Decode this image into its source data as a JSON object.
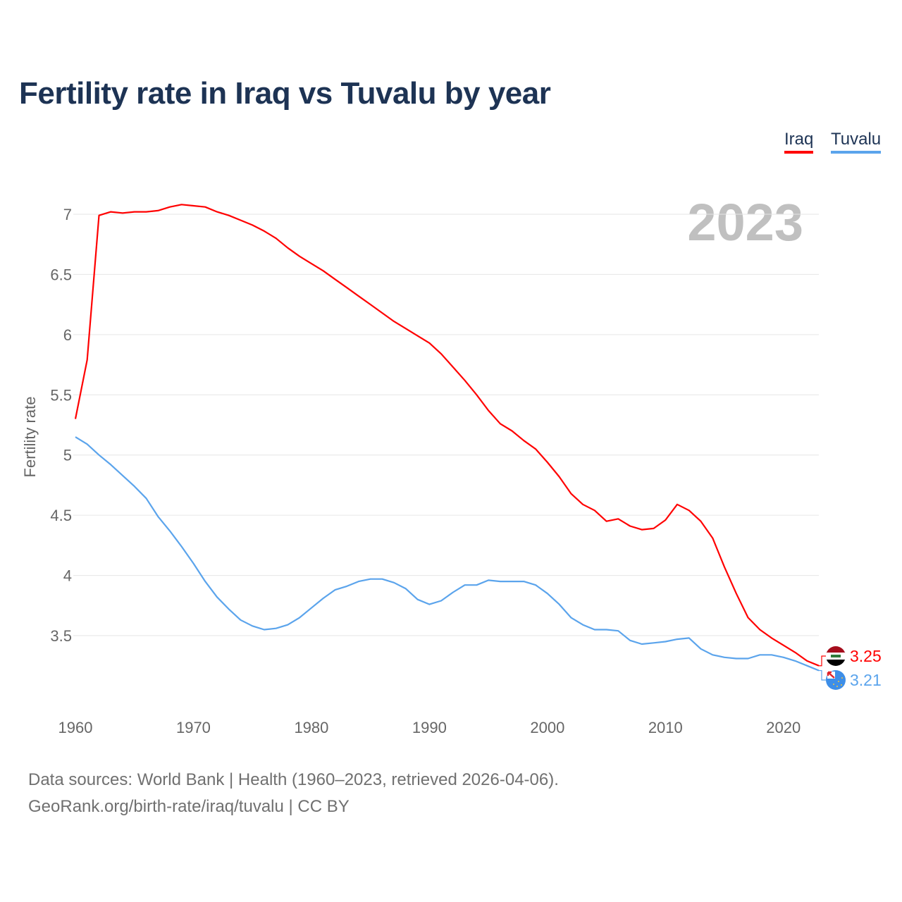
{
  "chart_data": {
    "type": "line",
    "title": "Fertility rate in Iraq vs Tuvalu by year",
    "ylabel": "Fertility rate",
    "xlabel": "",
    "year_watermark": "2023",
    "x_ticks": [
      "1960",
      "1970",
      "1980",
      "1990",
      "2000",
      "2010",
      "2020"
    ],
    "y_ticks": [
      "3.5",
      "4",
      "4.5",
      "5",
      "5.5",
      "6",
      "6.5",
      "7"
    ],
    "xlim": [
      1960,
      2023
    ],
    "ylim": [
      3.5,
      7
    ],
    "grid": true,
    "legend_placement": "top-right",
    "x_start": 1960,
    "series": [
      {
        "name": "Iraq",
        "color": "#ff0000",
        "end_label": "3.25",
        "values": [
          5.3,
          5.79,
          6.99,
          7.02,
          7.01,
          7.02,
          7.02,
          7.03,
          7.06,
          7.08,
          7.07,
          7.06,
          7.02,
          6.99,
          6.95,
          6.91,
          6.86,
          6.8,
          6.72,
          6.65,
          6.59,
          6.53,
          6.46,
          6.39,
          6.32,
          6.25,
          6.18,
          6.11,
          6.05,
          5.99,
          5.93,
          5.84,
          5.73,
          5.62,
          5.5,
          5.37,
          5.26,
          5.2,
          5.12,
          5.05,
          4.94,
          4.82,
          4.68,
          4.59,
          4.54,
          4.45,
          4.47,
          4.41,
          4.38,
          4.39,
          4.46,
          4.59,
          4.54,
          4.45,
          4.31,
          4.07,
          3.85,
          3.65,
          3.55,
          3.48,
          3.42,
          3.36,
          3.29,
          3.25
        ]
      },
      {
        "name": "Tuvalu",
        "color": "#5ba4ec",
        "end_label": "3.21",
        "values": [
          5.15,
          5.09,
          5.0,
          4.92,
          4.83,
          4.74,
          4.64,
          4.49,
          4.37,
          4.24,
          4.1,
          3.95,
          3.82,
          3.72,
          3.63,
          3.58,
          3.55,
          3.56,
          3.59,
          3.65,
          3.73,
          3.81,
          3.88,
          3.91,
          3.95,
          3.97,
          3.97,
          3.94,
          3.89,
          3.8,
          3.76,
          3.79,
          3.86,
          3.92,
          3.92,
          3.96,
          3.95,
          3.95,
          3.95,
          3.92,
          3.85,
          3.76,
          3.65,
          3.59,
          3.55,
          3.55,
          3.54,
          3.46,
          3.43,
          3.44,
          3.45,
          3.47,
          3.48,
          3.39,
          3.34,
          3.32,
          3.31,
          3.31,
          3.34,
          3.34,
          3.32,
          3.29,
          3.25,
          3.21
        ]
      }
    ]
  },
  "source": {
    "line1": "Data sources: World Bank | Health (1960–2023, retrieved 2026-04-06).",
    "line2": "GeoRank.org/birth-rate/iraq/tuvalu | CC BY"
  }
}
